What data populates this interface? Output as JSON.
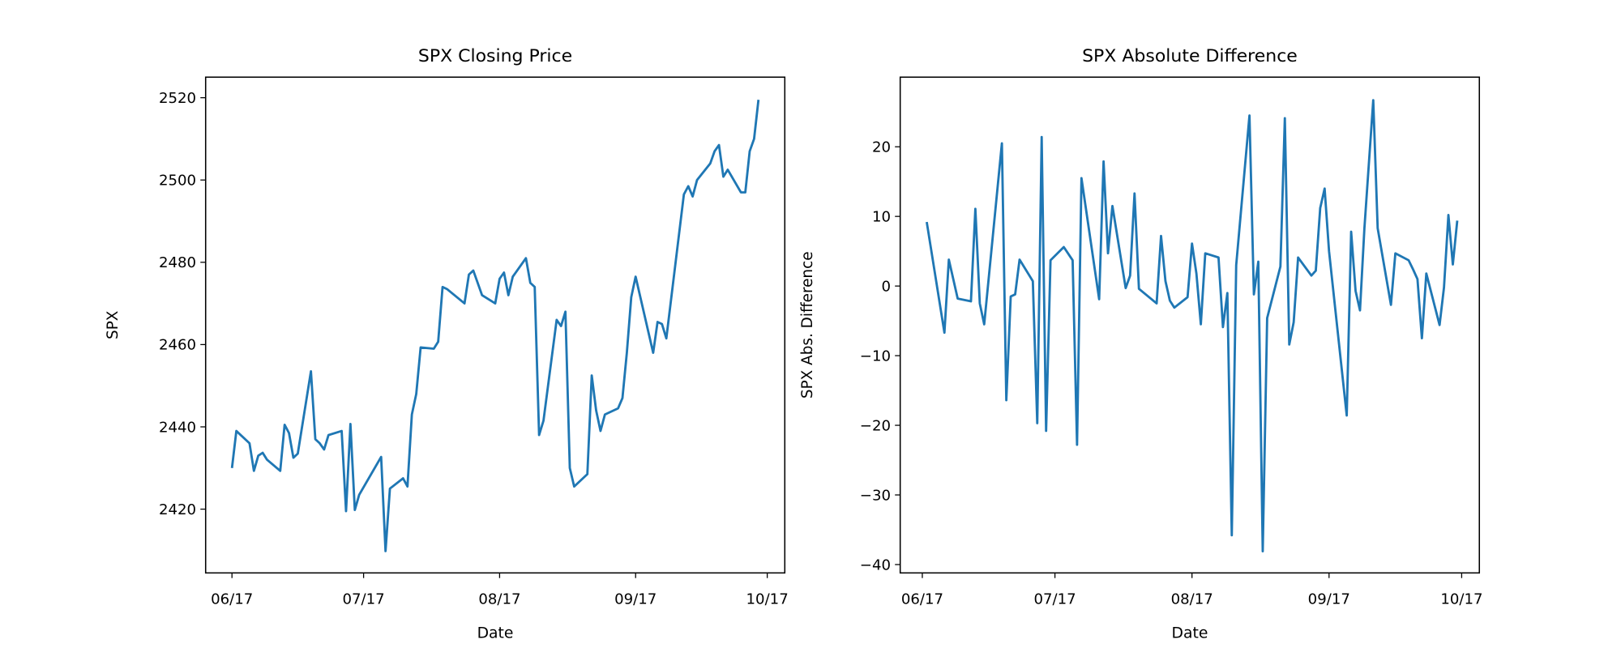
{
  "chart_data": [
    {
      "type": "line",
      "title": "SPX Closing Price",
      "x_label": "Date",
      "y_label": "SPX",
      "color": "#1f77b4",
      "x": [
        0,
        1,
        4,
        5,
        6,
        7,
        8,
        11,
        12,
        13,
        14,
        15,
        18,
        19,
        20,
        21,
        22,
        25,
        26,
        27,
        28,
        29,
        34,
        35,
        36,
        39,
        40,
        41,
        42,
        43,
        46,
        47,
        48,
        49,
        53,
        54,
        55,
        57,
        60,
        61,
        62,
        63,
        64,
        67,
        68,
        69,
        70,
        71,
        74,
        75,
        76,
        77,
        78,
        81,
        82,
        83,
        84,
        85,
        88,
        89,
        90,
        91,
        92,
        96,
        97,
        98,
        99,
        103,
        104,
        105,
        106,
        109,
        110,
        111,
        112,
        113,
        116,
        117,
        118,
        119,
        120
      ],
      "values": [
        2430,
        2439,
        2436,
        2429.3,
        2433,
        2433.7,
        2432,
        2429.3,
        2440.5,
        2438.5,
        2432.5,
        2433.5,
        2453.5,
        2437,
        2436,
        2434.5,
        2438,
        2439,
        2419.5,
        2440.7,
        2419.8,
        2423.5,
        2432.7,
        2409.8,
        2425,
        2427.5,
        2425.5,
        2443,
        2448,
        2459.3,
        2459,
        2460.7,
        2474,
        2473.5,
        2470,
        2477,
        2478,
        2472,
        2470,
        2476,
        2477.5,
        2472,
        2476.5,
        2481,
        2475,
        2474,
        2438,
        2441.5,
        2466,
        2464.5,
        2468,
        2430,
        2425.5,
        2428.5,
        2452.5,
        2444,
        2439,
        2443,
        2444.5,
        2447,
        2458,
        2471.5,
        2476.5,
        2458,
        2465.5,
        2465,
        2461.5,
        2496.5,
        2498.5,
        2496,
        2500,
        2504,
        2507,
        2508.5,
        2500.8,
        2502.5,
        2497,
        2497,
        2507,
        2510,
        2519.5
      ],
      "xlim": [
        -6,
        126
      ],
      "ylim": [
        2404.5,
        2525
      ],
      "xticks": [
        {
          "value": 0,
          "label": "06/17"
        },
        {
          "value": 30,
          "label": "07/17"
        },
        {
          "value": 61,
          "label": "08/17"
        },
        {
          "value": 92,
          "label": "09/17"
        },
        {
          "value": 122,
          "label": "10/17"
        }
      ],
      "yticks": [
        2420,
        2440,
        2460,
        2480,
        2500,
        2520
      ]
    },
    {
      "type": "line",
      "title": "SPX Absolute Difference",
      "x_label": "Date",
      "y_label": "SPX Abs. Difference",
      "color": "#1f77b4",
      "x": [
        1,
        5,
        6,
        8,
        11,
        12,
        13,
        14,
        18,
        19,
        20,
        21,
        22,
        25,
        26,
        27,
        28,
        29,
        32,
        34,
        35,
        36,
        40,
        41,
        42,
        43,
        46,
        47,
        48,
        49,
        53,
        54,
        55,
        56,
        57,
        60,
        61,
        62,
        63,
        64,
        67,
        68,
        69,
        70,
        71,
        74,
        75,
        76,
        77,
        78,
        81,
        82,
        83,
        84,
        85,
        88,
        89,
        90,
        91,
        92,
        96,
        97,
        98,
        99,
        100,
        102,
        103,
        106,
        107,
        110,
        111,
        112,
        113,
        114,
        117,
        118,
        119,
        120,
        121
      ],
      "values": [
        9.2,
        -6.7,
        3.8,
        -1.8,
        -2.2,
        11.1,
        -2.5,
        -5.5,
        20.5,
        -16.4,
        -1.5,
        -1.2,
        3.8,
        0.7,
        -19.7,
        21.4,
        -20.8,
        3.7,
        5.6,
        3.7,
        -22.8,
        15.5,
        -1.9,
        17.9,
        4.7,
        11.5,
        -0.3,
        1.5,
        13.3,
        -0.4,
        -2.5,
        7.2,
        0.7,
        -2.1,
        -3.1,
        -1.6,
        6.1,
        1.8,
        -5.5,
        4.7,
        4.1,
        -5.9,
        -1.0,
        -35.8,
        3.0,
        24.5,
        -1.2,
        3.5,
        -38.1,
        -4.6,
        2.8,
        24.1,
        -8.4,
        -5.2,
        4.1,
        1.5,
        2.2,
        11.2,
        14.0,
        5.0,
        -18.6,
        7.8,
        -0.7,
        -3.5,
        8.3,
        26.7,
        8.3,
        -2.7,
        4.7,
        3.7,
        2.4,
        1.0,
        -7.5,
        1.8,
        -5.6,
        -0.2,
        10.2,
        3.1,
        9.4
      ],
      "xlim": [
        -5,
        126
      ],
      "ylim": [
        -41.2,
        30
      ],
      "xticks": [
        {
          "value": 0,
          "label": "06/17"
        },
        {
          "value": 30,
          "label": "07/17"
        },
        {
          "value": 61,
          "label": "08/17"
        },
        {
          "value": 92,
          "label": "09/17"
        },
        {
          "value": 122,
          "label": "10/17"
        }
      ],
      "yticks": [
        {
          "value": -40,
          "label": "−40"
        },
        {
          "value": -30,
          "label": "−30"
        },
        {
          "value": -20,
          "label": "−20"
        },
        {
          "value": -10,
          "label": "−10"
        },
        0,
        10,
        20
      ]
    }
  ]
}
